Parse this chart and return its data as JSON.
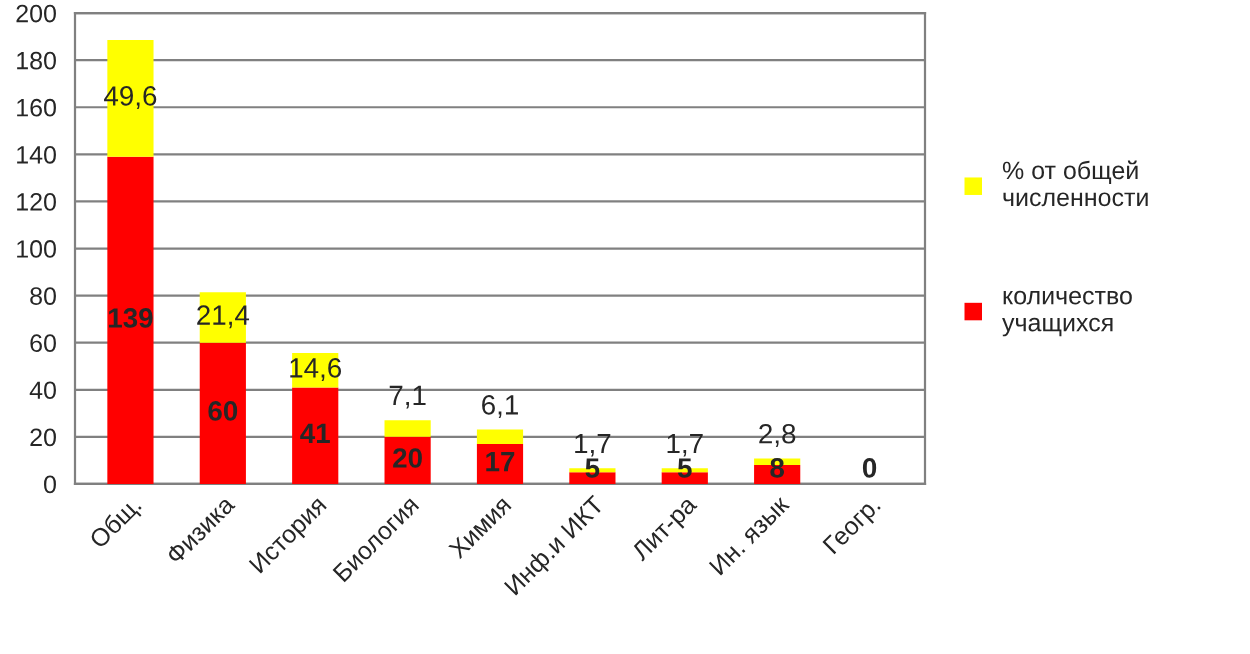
{
  "chart_data": {
    "type": "bar",
    "stacked": true,
    "categories": [
      "Общ.",
      "Физика",
      "История",
      "Биология",
      "Химия",
      "Инф.и ИКТ",
      "Лит-ра",
      "Ин. язык",
      "Геогр."
    ],
    "series": [
      {
        "name": "количество\nучащихся",
        "color": "#ff0000",
        "values": [
          139,
          60,
          41,
          20,
          17,
          5,
          5,
          8,
          0
        ],
        "value_labels": [
          "139",
          "60",
          "41",
          "20",
          "17",
          "5",
          "5",
          "8",
          "0"
        ]
      },
      {
        "name": "% от общей\nчисленности",
        "color": "#ffff00",
        "values": [
          49.6,
          21.4,
          14.6,
          7.1,
          6.1,
          1.7,
          1.7,
          2.8,
          0
        ],
        "value_labels": [
          "49,6",
          "21,4",
          "14,6",
          "7,1",
          "6,1",
          "1,7",
          "1,7",
          "2,8",
          null
        ]
      }
    ],
    "ylim": [
      0,
      200
    ],
    "yticks": [
      0,
      20,
      40,
      60,
      80,
      100,
      120,
      140,
      160,
      180,
      200
    ],
    "grid": "y",
    "legend": "right"
  }
}
